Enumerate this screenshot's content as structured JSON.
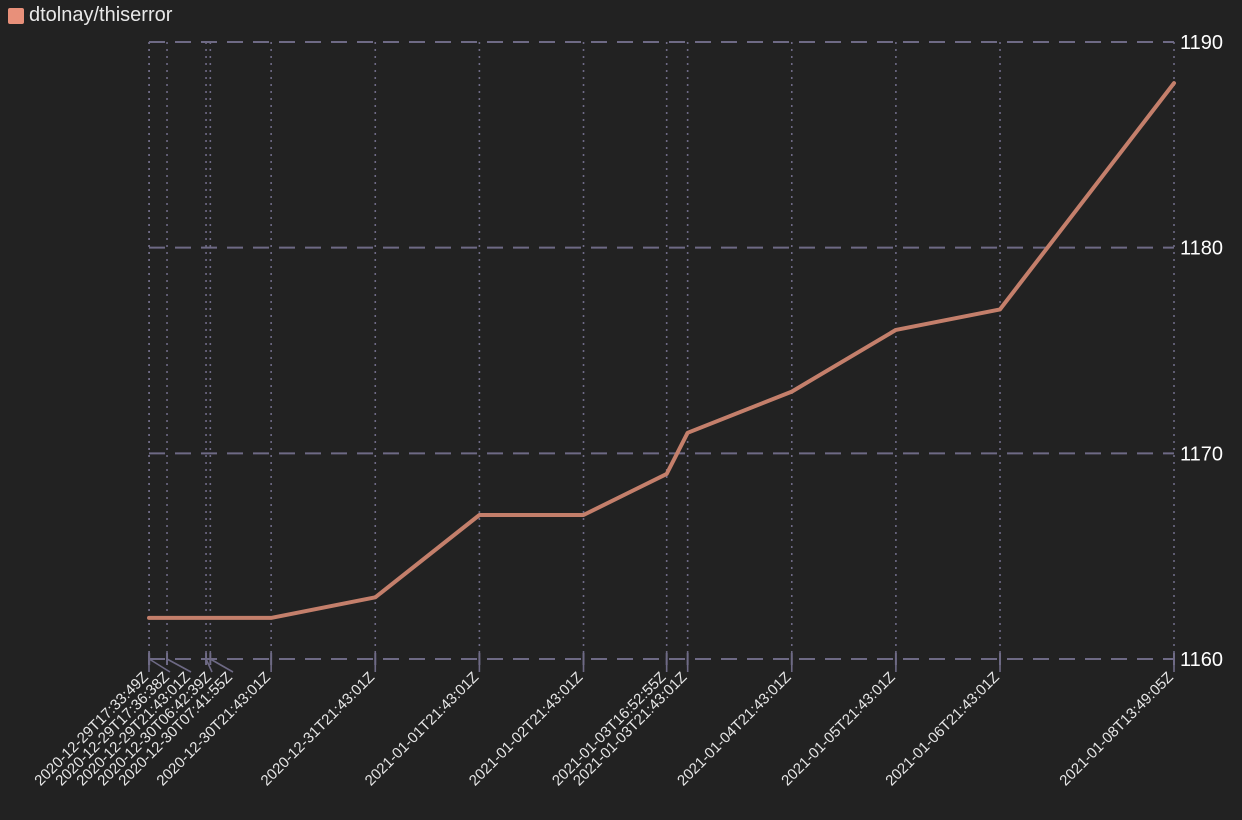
{
  "chart_data": {
    "type": "line",
    "title": "",
    "xlabel": "",
    "ylabel": "",
    "legend_position": "top-left",
    "y_axis_side": "right",
    "grid": true,
    "ylim": [
      1160,
      1190
    ],
    "yticks": [
      1160,
      1170,
      1180,
      1190
    ],
    "xlim": [
      "2020-12-29T17:33:49Z",
      "2021-01-08T13:49:05Z"
    ],
    "series": [
      {
        "name": "dtolnay/thiserror",
        "color": "#c47f6b",
        "legend_color": "#e8907a",
        "x": [
          "2020-12-29T17:33:49Z",
          "2020-12-29T17:36:38Z",
          "2020-12-29T21:43:01Z",
          "2020-12-30T06:42:39Z",
          "2020-12-30T07:41:55Z",
          "2020-12-30T21:43:01Z",
          "2020-12-31T21:43:01Z",
          "2021-01-01T21:43:01Z",
          "2021-01-02T21:43:01Z",
          "2021-01-03T16:52:55Z",
          "2021-01-03T21:43:01Z",
          "2021-01-04T21:43:01Z",
          "2021-01-05T21:43:01Z",
          "2021-01-06T21:43:01Z",
          "2021-01-08T13:49:05Z"
        ],
        "values": [
          1162,
          1162,
          1162,
          1162,
          1162,
          1162,
          1163,
          1167,
          1167,
          1169,
          1171,
          1173,
          1176,
          1177,
          1188
        ]
      }
    ]
  },
  "colors": {
    "background": "#222222",
    "grid": "#6e6a85",
    "text": "#ffffff"
  }
}
